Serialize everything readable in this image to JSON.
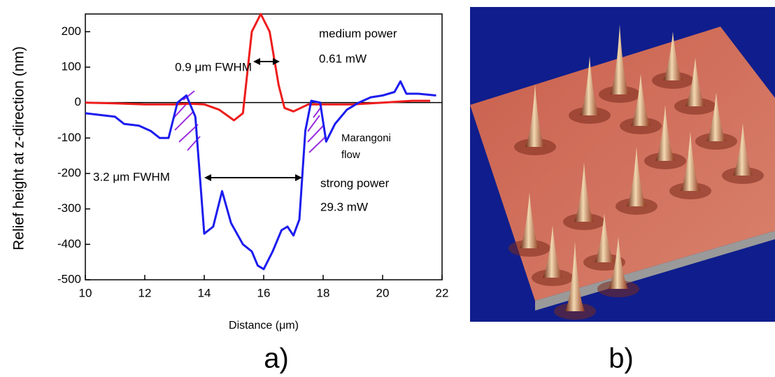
{
  "chart_data": {
    "type": "line",
    "xlabel": "Distance (μm)",
    "ylabel": "Relief height at z-direction (nm)",
    "xlim": [
      10,
      22
    ],
    "xticks": [
      10,
      12,
      14,
      16,
      18,
      20,
      22
    ],
    "ylim": [
      -500,
      250
    ],
    "yticks": [
      -500,
      -400,
      -300,
      -200,
      -100,
      0,
      100,
      200
    ],
    "annotations": [
      "0.9 μm FWHM",
      "medium power",
      "0.61 mW",
      "3.2 μm FWHM",
      "strong power",
      "29.3 mW",
      "Marangoni",
      "flow"
    ],
    "series": [
      {
        "name": "medium power",
        "color": "#ee1c1c",
        "x": [
          10,
          11,
          12,
          13,
          13.5,
          14,
          14.5,
          15,
          15.3,
          15.6,
          15.9,
          16.2,
          16.5,
          16.7,
          17,
          17.5,
          18,
          19,
          20,
          21,
          21.6
        ],
        "values": [
          0,
          -2,
          -5,
          -5,
          -3,
          -5,
          -20,
          -50,
          -30,
          200,
          250,
          200,
          50,
          -15,
          -25,
          -5,
          -5,
          -5,
          0,
          5,
          5
        ]
      },
      {
        "name": "strong power",
        "color": "#1c1cee",
        "x": [
          10,
          10.5,
          11,
          11.3,
          11.8,
          12.2,
          12.5,
          12.8,
          13.1,
          13.4,
          13.7,
          14.0,
          14.3,
          14.6,
          14.9,
          15.3,
          15.6,
          15.8,
          16.0,
          16.3,
          16.6,
          16.8,
          17.0,
          17.2,
          17.4,
          17.6,
          17.9,
          18.1,
          18.4,
          18.8,
          19.2,
          19.6,
          20,
          20.4,
          20.6,
          20.8,
          21.2,
          21.8
        ],
        "values": [
          -30,
          -35,
          -40,
          -60,
          -65,
          -80,
          -100,
          -100,
          0,
          20,
          -40,
          -370,
          -350,
          -250,
          -340,
          -400,
          -420,
          -460,
          -470,
          -420,
          -360,
          -350,
          -375,
          -330,
          -80,
          5,
          0,
          -110,
          -60,
          -20,
          0,
          15,
          20,
          30,
          60,
          25,
          25,
          20
        ]
      }
    ]
  },
  "panels": [
    "a)",
    "b)"
  ]
}
